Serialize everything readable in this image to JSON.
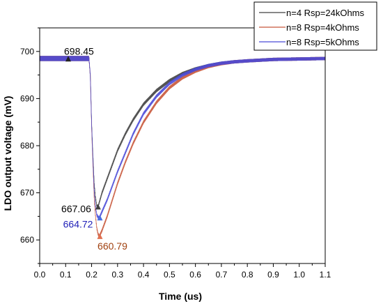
{
  "chart_data": {
    "type": "line",
    "xlabel": "Time (us)",
    "ylabel": "LDO output voltage (mV)",
    "xlim": [
      0.0,
      1.1
    ],
    "ylim": [
      655,
      705
    ],
    "xticks": [
      "0.0",
      "0.1",
      "0.2",
      "0.3",
      "0.4",
      "0.5",
      "0.6",
      "0.7",
      "0.8",
      "0.9",
      "1.0",
      "1.1"
    ],
    "yticks": [
      "660",
      "670",
      "680",
      "690",
      "700"
    ],
    "grid": false,
    "legend_position": "top-right",
    "series": [
      {
        "name": "n=4 Rsp=24kOhms",
        "color": "#404040",
        "x": [
          0,
          0.19,
          0.195,
          0.2,
          0.205,
          0.21,
          0.215,
          0.22,
          0.225,
          0.24,
          0.26,
          0.28,
          0.3,
          0.33,
          0.36,
          0.4,
          0.45,
          0.5,
          0.55,
          0.6,
          0.65,
          0.7,
          0.75,
          0.8,
          0.9,
          1.0,
          1.1
        ],
        "y": [
          698.5,
          698.5,
          695,
          685,
          678,
          672,
          669,
          667.2,
          667.06,
          670,
          673,
          676,
          679,
          682.5,
          685.5,
          688.8,
          691.7,
          693.8,
          695.3,
          696.3,
          697.0,
          697.5,
          697.8,
          698.0,
          698.3,
          698.4,
          698.5
        ]
      },
      {
        "name": "n=8 Rsp=4kOhms",
        "color": "#c8563a",
        "x": [
          0,
          0.19,
          0.195,
          0.2,
          0.205,
          0.21,
          0.215,
          0.22,
          0.225,
          0.23,
          0.24,
          0.26,
          0.28,
          0.3,
          0.33,
          0.36,
          0.4,
          0.45,
          0.5,
          0.55,
          0.6,
          0.65,
          0.7,
          0.75,
          0.8,
          0.9,
          1.0,
          1.1
        ],
        "y": [
          698.5,
          698.5,
          695,
          684,
          676,
          669,
          665,
          662.5,
          661.2,
          660.79,
          662,
          665,
          668.5,
          672,
          676.5,
          680.5,
          685,
          689.2,
          692.3,
          694.4,
          695.8,
          696.8,
          697.4,
          697.8,
          698.0,
          698.3,
          698.4,
          698.5
        ]
      },
      {
        "name": "n=8 Rsp=5kOhms",
        "color": "#4a4ad8",
        "x": [
          0,
          0.19,
          0.195,
          0.2,
          0.205,
          0.21,
          0.215,
          0.22,
          0.225,
          0.23,
          0.24,
          0.26,
          0.28,
          0.3,
          0.33,
          0.36,
          0.4,
          0.45,
          0.5,
          0.55,
          0.6,
          0.65,
          0.7,
          0.75,
          0.8,
          0.9,
          1.0,
          1.1
        ],
        "y": [
          698.5,
          698.5,
          695,
          684.5,
          677,
          670.5,
          667,
          665.3,
          664.8,
          664.72,
          666,
          668.5,
          671.5,
          674.5,
          678.5,
          682.5,
          686.8,
          690.5,
          693.2,
          695.0,
          696.2,
          697.0,
          697.5,
          697.8,
          698.0,
          698.3,
          698.4,
          698.5
        ]
      }
    ],
    "annotations": [
      {
        "text": "698.45",
        "x": 0.11,
        "y": 698.45,
        "color": "#000000",
        "marker_color": "#222222",
        "anchor": "right-above"
      },
      {
        "text": "667.06",
        "x": 0.225,
        "y": 667.06,
        "color": "#000000",
        "marker_color": "#404040",
        "anchor": "left"
      },
      {
        "text": "664.72",
        "x": 0.232,
        "y": 664.72,
        "color": "#1f1fb8",
        "marker_color": "#4a6fe0",
        "anchor": "left"
      },
      {
        "text": "660.79",
        "x": 0.232,
        "y": 660.79,
        "color": "#a0400f",
        "marker_color": "#e07050",
        "anchor": "below"
      }
    ]
  }
}
